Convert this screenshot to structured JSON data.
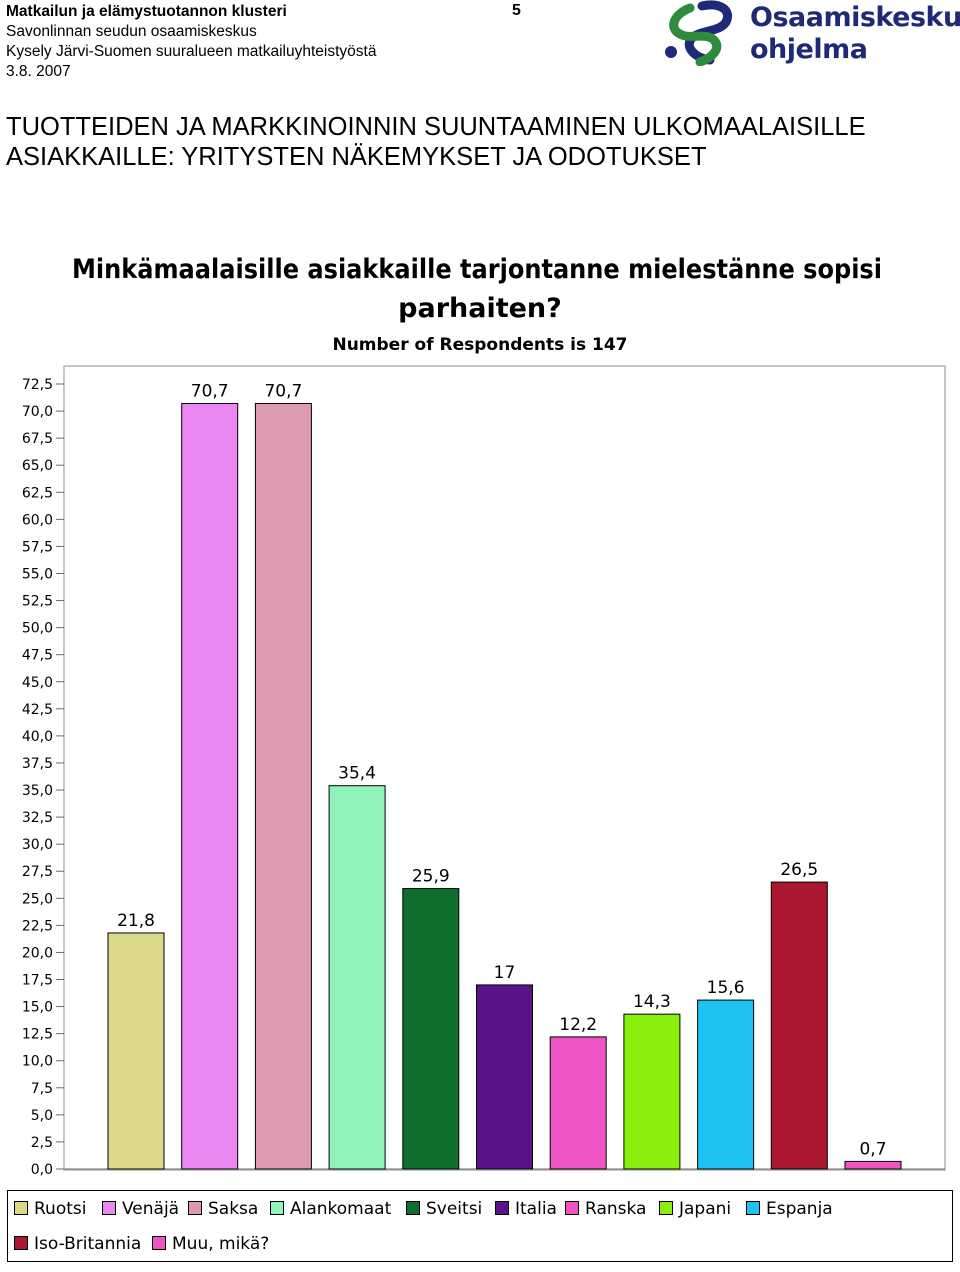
{
  "header": {
    "line1": "Matkailun ja elämystuotannon klusteri",
    "line2": "Savonlinnan seudun osaamiskeskus",
    "line3": "Kysely Järvi-Suomen suuralueen matkailuyhteistyöstä",
    "line4": "3.8. 2007",
    "page_number": "5"
  },
  "logo": {
    "line1": "Osaamiskeskus-",
    "line2": "ohjelma",
    "colors": {
      "blue": "#1e2a78",
      "green": "#2e8b3d"
    }
  },
  "page_heading": {
    "line1": "TUOTTEIDEN JA MARKKINOINNIN SUUNTAAMINEN ULKOMAALAISILLE",
    "line2": "ASIAKKAILLE: YRITYSTEN NÄKEMYKSET JA ODOTUKSET"
  },
  "chart_data": {
    "type": "bar",
    "title_line1": "Minkämaalaisille asiakkaille tarjontanne mielestänne sopisi",
    "title_line2": "parhaiten?",
    "subtitle": "Number of Respondents is 147",
    "ylim": [
      0,
      72.5
    ],
    "yticks": [
      "0,0",
      "2,5",
      "5,0",
      "7,5",
      "10,0",
      "12,5",
      "15,0",
      "17,5",
      "20,0",
      "22,5",
      "25,0",
      "27,5",
      "30,0",
      "32,5",
      "35,0",
      "37,5",
      "40,0",
      "42,5",
      "45,0",
      "47,5",
      "50,0",
      "52,5",
      "55,0",
      "57,5",
      "60,0",
      "62,5",
      "65,0",
      "67,5",
      "70,0",
      "72,5"
    ],
    "grid": false,
    "legend_position": "bottom",
    "categories": [
      "Ruotsi",
      "Venäjä",
      "Saksa",
      "Alankomaat",
      "Sveitsi",
      "Italia",
      "Ranska",
      "Japani",
      "Espanja",
      "Iso-Britannia",
      "Muu, mikä?"
    ],
    "values": [
      21.8,
      70.7,
      70.7,
      35.4,
      25.9,
      17,
      12.2,
      14.3,
      15.6,
      26.5,
      0.7
    ],
    "value_labels": [
      "21,8",
      "70,7",
      "70,7",
      "35,4",
      "25,9",
      "17",
      "12,2",
      "14,3",
      "15,6",
      "26,5",
      "0,7"
    ],
    "colors": [
      "#dcd98a",
      "#ea88f3",
      "#dc9ab3",
      "#91f3b7",
      "#0f6f2e",
      "#5a1487",
      "#ec55c2",
      "#8aef0d",
      "#1dc1f2",
      "#ab1730",
      "#ec55c2"
    ]
  }
}
